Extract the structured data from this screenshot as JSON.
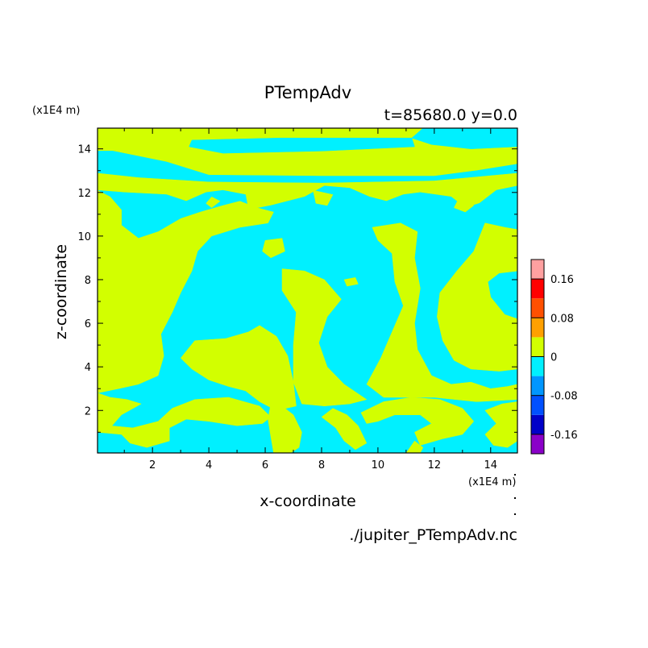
{
  "chart_data": {
    "type": "heatmap",
    "title": "PTempAdv",
    "subtitle": "t=85680.0 y=0.0",
    "xlabel": "x-coordinate",
    "ylabel": "z-coordinate",
    "x_unit": "(x1E4 m)",
    "y_unit": "(x1E4 m)",
    "xlim": [
      0.05,
      14.95
    ],
    "ylim": [
      0.05,
      14.95
    ],
    "x_ticks": [
      2,
      4,
      6,
      8,
      10,
      12,
      14
    ],
    "y_ticks": [
      2,
      4,
      6,
      8,
      10,
      12,
      14
    ],
    "footer": "./jupiter_PTempAdv.nc",
    "colorbar": {
      "levels": [
        -0.2,
        -0.16,
        -0.12,
        -0.08,
        -0.04,
        0,
        0.04,
        0.08,
        0.12,
        0.16,
        0.2
      ],
      "tick_labels": [
        "0.16",
        "0.08",
        "0",
        "-0.08",
        "-0.16"
      ],
      "tick_values": [
        0.16,
        0.08,
        0,
        -0.08,
        -0.16
      ],
      "colors": [
        "#8a00c8",
        "#0000c8",
        "#0050ff",
        "#0096ff",
        "#00f0ff",
        "#d2ff00",
        "#ffa000",
        "#ff5000",
        "#ff0000",
        "#ffa0a0"
      ]
    },
    "background_level_color": "#d2ff00",
    "regions": [
      {
        "level": "negative",
        "color": "#00f0ff",
        "polygon": [
          [
            3.4,
            14.4
          ],
          [
            6.5,
            14.5
          ],
          [
            10,
            14.5
          ],
          [
            11.2,
            14.5
          ],
          [
            11.3,
            14.1
          ],
          [
            8,
            13.9
          ],
          [
            4.5,
            13.8
          ],
          [
            3.3,
            14.1
          ]
        ]
      },
      {
        "level": "negative",
        "color": "#00f0ff",
        "polygon": [
          [
            11.2,
            14.5
          ],
          [
            11.6,
            14.95
          ],
          [
            14.95,
            14.95
          ],
          [
            14.95,
            14.1
          ],
          [
            13.3,
            14.0
          ],
          [
            11.9,
            14.2
          ]
        ]
      },
      {
        "level": "negative",
        "color": "#00f0ff",
        "polygon": [
          [
            0.05,
            13.9
          ],
          [
            0.6,
            13.9
          ],
          [
            2.5,
            13.4
          ],
          [
            4,
            12.8
          ],
          [
            8,
            12.75
          ],
          [
            12,
            12.75
          ],
          [
            13.5,
            13.0
          ],
          [
            14.95,
            13.3
          ],
          [
            14.95,
            12.9
          ],
          [
            12,
            12.55
          ],
          [
            8,
            12.45
          ],
          [
            4,
            12.5
          ],
          [
            1.5,
            12.7
          ],
          [
            0.05,
            12.9
          ]
        ]
      },
      {
        "level": "negative",
        "color": "#00f0ff",
        "polygon": [
          [
            0.05,
            12.1
          ],
          [
            1,
            12.0
          ],
          [
            2.5,
            11.9
          ],
          [
            3.2,
            11.6
          ],
          [
            3.9,
            12.0
          ],
          [
            4.5,
            12.1
          ],
          [
            5.3,
            11.9
          ],
          [
            5.4,
            11.2
          ],
          [
            6.2,
            11.4
          ],
          [
            7.4,
            11.8
          ],
          [
            8.1,
            12.3
          ],
          [
            9.0,
            12.2
          ],
          [
            9.7,
            11.8
          ],
          [
            10.3,
            11.6
          ],
          [
            10.9,
            11.9
          ],
          [
            11.5,
            12.0
          ],
          [
            12.6,
            11.8
          ],
          [
            13.1,
            11.3
          ],
          [
            13.6,
            11.5
          ],
          [
            14.2,
            12.1
          ],
          [
            14.95,
            12.3
          ],
          [
            14.95,
            0.05
          ],
          [
            0.05,
            0.05
          ]
        ]
      },
      {
        "level": "nonnegative",
        "color": "#d2ff00",
        "polygon": [
          [
            0.05,
            12.1
          ],
          [
            0.5,
            11.8
          ],
          [
            0.9,
            11.2
          ],
          [
            0.9,
            10.5
          ],
          [
            1.5,
            9.9
          ],
          [
            2.2,
            10.2
          ],
          [
            3.0,
            10.8
          ],
          [
            3.7,
            11.1
          ],
          [
            4.5,
            11.4
          ],
          [
            5.1,
            11.6
          ],
          [
            5.7,
            11.3
          ],
          [
            6.3,
            11.1
          ],
          [
            6.1,
            10.6
          ],
          [
            5.1,
            10.4
          ],
          [
            4.1,
            10.0
          ],
          [
            3.6,
            9.3
          ],
          [
            3.4,
            8.4
          ],
          [
            3.0,
            7.4
          ],
          [
            2.7,
            6.5
          ],
          [
            2.3,
            5.5
          ],
          [
            2.4,
            4.5
          ],
          [
            2.2,
            3.6
          ],
          [
            1.5,
            3.2
          ],
          [
            0.8,
            3.0
          ],
          [
            0.05,
            2.8
          ]
        ]
      },
      {
        "level": "nonnegative",
        "color": "#d2ff00",
        "polygon": [
          [
            0.05,
            2.8
          ],
          [
            0.5,
            2.6
          ],
          [
            1.1,
            2.5
          ],
          [
            1.6,
            2.3
          ],
          [
            0.9,
            1.8
          ],
          [
            0.5,
            1.2
          ],
          [
            0.05,
            1.0
          ]
        ]
      },
      {
        "level": "nonnegative",
        "color": "#d2ff00",
        "polygon": [
          [
            3.5,
            5.2
          ],
          [
            4.6,
            5.3
          ],
          [
            5.4,
            5.6
          ],
          [
            5.8,
            5.9
          ],
          [
            6.4,
            5.4
          ],
          [
            6.8,
            4.5
          ],
          [
            7.0,
            3.3
          ],
          [
            7.1,
            2.2
          ],
          [
            6.4,
            2.0
          ],
          [
            5.8,
            2.4
          ],
          [
            5.3,
            2.9
          ],
          [
            4.7,
            3.1
          ],
          [
            4.0,
            3.4
          ],
          [
            3.4,
            3.9
          ],
          [
            3.0,
            4.4
          ]
        ]
      },
      {
        "level": "nonnegative",
        "color": "#d2ff00",
        "polygon": [
          [
            6.6,
            8.5
          ],
          [
            7.4,
            8.4
          ],
          [
            8.1,
            8.0
          ],
          [
            8.7,
            7.1
          ],
          [
            8.2,
            6.3
          ],
          [
            7.9,
            5.1
          ],
          [
            8.2,
            4.0
          ],
          [
            8.8,
            3.2
          ],
          [
            9.6,
            2.5
          ],
          [
            9.0,
            2.3
          ],
          [
            8.1,
            2.2
          ],
          [
            7.3,
            2.3
          ],
          [
            7.0,
            3.3
          ],
          [
            7.0,
            5.0
          ],
          [
            7.1,
            6.5
          ],
          [
            6.6,
            7.5
          ]
        ]
      },
      {
        "level": "nonnegative",
        "color": "#d2ff00",
        "polygon": [
          [
            8.8,
            8.0
          ],
          [
            9.2,
            8.1
          ],
          [
            9.3,
            7.8
          ],
          [
            8.9,
            7.7
          ]
        ]
      },
      {
        "level": "nonnegative",
        "color": "#d2ff00",
        "polygon": [
          [
            6.0,
            9.8
          ],
          [
            6.6,
            9.9
          ],
          [
            6.7,
            9.3
          ],
          [
            6.2,
            9.0
          ],
          [
            5.9,
            9.3
          ]
        ]
      },
      {
        "level": "nonnegative",
        "color": "#d2ff00",
        "polygon": [
          [
            9.8,
            10.4
          ],
          [
            10.8,
            10.6
          ],
          [
            11.4,
            10.2
          ],
          [
            11.3,
            9.0
          ],
          [
            11.5,
            7.6
          ],
          [
            11.3,
            6.0
          ],
          [
            11.4,
            4.8
          ],
          [
            11.9,
            3.6
          ],
          [
            12.6,
            3.2
          ],
          [
            13.3,
            3.3
          ],
          [
            14.0,
            3.0
          ],
          [
            14.6,
            3.1
          ],
          [
            14.95,
            3.2
          ],
          [
            14.95,
            2.5
          ],
          [
            13.5,
            2.4
          ],
          [
            12.0,
            2.6
          ],
          [
            10.2,
            2.6
          ],
          [
            9.6,
            3.2
          ],
          [
            10.1,
            4.4
          ],
          [
            10.5,
            5.6
          ],
          [
            10.9,
            6.8
          ],
          [
            10.6,
            7.9
          ],
          [
            10.5,
            9.2
          ],
          [
            10.0,
            9.8
          ]
        ]
      },
      {
        "level": "nonnegative",
        "color": "#d2ff00",
        "polygon": [
          [
            13.8,
            10.6
          ],
          [
            14.5,
            10.4
          ],
          [
            14.95,
            10.3
          ],
          [
            14.95,
            8.4
          ],
          [
            14.3,
            8.3
          ],
          [
            13.9,
            7.9
          ],
          [
            14.0,
            7.2
          ],
          [
            14.5,
            6.4
          ],
          [
            14.95,
            6.2
          ],
          [
            14.95,
            3.9
          ],
          [
            14.3,
            3.8
          ],
          [
            13.3,
            3.9
          ],
          [
            12.7,
            4.3
          ],
          [
            12.3,
            5.2
          ],
          [
            12.1,
            6.3
          ],
          [
            12.2,
            7.4
          ],
          [
            12.8,
            8.4
          ],
          [
            13.4,
            9.3
          ]
        ]
      },
      {
        "level": "nonnegative",
        "color": "#d2ff00",
        "polygon": [
          [
            0.05,
            1.9
          ],
          [
            0.5,
            1.3
          ],
          [
            1.3,
            1.2
          ],
          [
            2.2,
            1.5
          ],
          [
            2.7,
            2.1
          ],
          [
            3.5,
            2.5
          ],
          [
            4.7,
            2.6
          ],
          [
            5.8,
            2.2
          ],
          [
            6.2,
            1.7
          ],
          [
            5.9,
            1.4
          ],
          [
            5.0,
            1.3
          ],
          [
            4.0,
            1.5
          ],
          [
            3.2,
            1.6
          ],
          [
            2.6,
            1.2
          ],
          [
            2.6,
            0.6
          ],
          [
            1.8,
            0.3
          ],
          [
            1.2,
            0.5
          ],
          [
            0.9,
            0.9
          ],
          [
            0.05,
            1.0
          ]
        ]
      },
      {
        "level": "nonnegative",
        "color": "#d2ff00",
        "polygon": [
          [
            8.0,
            1.7
          ],
          [
            8.4,
            2.1
          ],
          [
            8.9,
            1.8
          ],
          [
            9.3,
            1.3
          ],
          [
            9.6,
            0.5
          ],
          [
            9.2,
            0.2
          ],
          [
            8.8,
            0.6
          ],
          [
            8.5,
            1.2
          ]
        ]
      },
      {
        "level": "nonnegative",
        "color": "#d2ff00",
        "polygon": [
          [
            9.4,
            1.9
          ],
          [
            10.2,
            2.4
          ],
          [
            11.2,
            2.6
          ],
          [
            12.2,
            2.5
          ],
          [
            13.0,
            2.1
          ],
          [
            13.4,
            1.5
          ],
          [
            13.0,
            0.9
          ],
          [
            12.3,
            0.7
          ],
          [
            11.5,
            0.4
          ],
          [
            11.3,
            1.0
          ],
          [
            11.9,
            1.4
          ],
          [
            11.5,
            1.8
          ],
          [
            10.6,
            1.8
          ],
          [
            10.0,
            1.5
          ],
          [
            9.6,
            1.4
          ]
        ]
      },
      {
        "level": "nonnegative",
        "color": "#d2ff00",
        "polygon": [
          [
            6.2,
            2.3
          ],
          [
            6.6,
            2.2
          ],
          [
            7.0,
            1.8
          ],
          [
            7.3,
            1.0
          ],
          [
            7.2,
            0.3
          ],
          [
            6.9,
            0.05
          ],
          [
            6.3,
            0.05
          ],
          [
            6.2,
            0.8
          ],
          [
            6.1,
            1.6
          ]
        ]
      },
      {
        "level": "nonnegative",
        "color": "#d2ff00",
        "polygon": [
          [
            11.0,
            0.05
          ],
          [
            11.3,
            0.6
          ],
          [
            11.6,
            0.3
          ],
          [
            11.5,
            0.05
          ]
        ]
      },
      {
        "level": "nonnegative",
        "color": "#d2ff00",
        "polygon": [
          [
            13.8,
            2.0
          ],
          [
            14.4,
            2.3
          ],
          [
            14.95,
            2.4
          ],
          [
            14.95,
            0.6
          ],
          [
            14.6,
            0.3
          ],
          [
            14.1,
            0.4
          ],
          [
            13.8,
            0.9
          ],
          [
            14.2,
            1.4
          ]
        ]
      },
      {
        "level": "nonnegative",
        "color": "#d2ff00",
        "polygon": [
          [
            7.7,
            12.1
          ],
          [
            8.4,
            11.9
          ],
          [
            8.2,
            11.4
          ],
          [
            7.8,
            11.5
          ]
        ]
      },
      {
        "level": "nonnegative",
        "color": "#d2ff00",
        "polygon": [
          [
            4.1,
            11.8
          ],
          [
            4.4,
            11.6
          ],
          [
            4.1,
            11.3
          ],
          [
            3.9,
            11.5
          ]
        ]
      },
      {
        "level": "nonnegative",
        "color": "#d2ff00",
        "polygon": [
          [
            12.9,
            11.8
          ],
          [
            13.4,
            11.4
          ],
          [
            13.1,
            11.1
          ],
          [
            12.7,
            11.3
          ]
        ]
      }
    ]
  }
}
